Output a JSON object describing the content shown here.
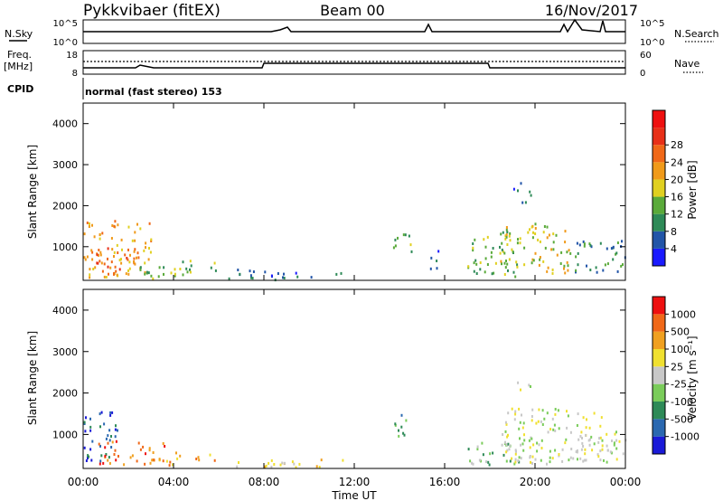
{
  "header": {
    "station": "Pykkvibaer (fitEX)",
    "beam": "Beam 00",
    "date": "16/Nov/2017"
  },
  "status_panel": {
    "nsky_label": "N.Sky",
    "nsearch_label": "N.Search",
    "noise_ticks": [
      "10^5",
      "10^0"
    ],
    "freq_label": "Freq.",
    "freq_unit": "[MHz]",
    "freq_ticks": [
      "18",
      "8"
    ],
    "nave_label": "Nave",
    "nave_ticks": [
      "60",
      "0"
    ],
    "cpid_label": "CPID",
    "cpid_text": "normal (fast stereo) 153"
  },
  "x_axis": {
    "label": "Time UT",
    "ticks": [
      "00:00",
      "04:00",
      "08:00",
      "12:00",
      "16:00",
      "20:00",
      "00:00"
    ]
  },
  "chart_data": [
    {
      "type": "heatmap",
      "panel": "power",
      "ylabel": "Slant Range [km]",
      "xlim_hours": [
        0,
        24
      ],
      "ylim_km": [
        180,
        4500
      ],
      "yticks": [
        1000,
        2000,
        3000,
        4000
      ],
      "colorbar": {
        "label": "Power [dB]",
        "ticks": [
          "4",
          "8",
          "12",
          "16",
          "20",
          "24",
          "28"
        ],
        "colors": [
          "#1a1aff",
          "#2255a8",
          "#2e8a57",
          "#5aaa3a",
          "#e0d020",
          "#f09a1a",
          "#f06818",
          "#e83018",
          "#ee1010"
        ]
      },
      "regions": [
        {
          "t0": 0.0,
          "t1": 3.0,
          "r0": 250,
          "r1": 1700,
          "level": 5
        },
        {
          "t0": 0.3,
          "t1": 2.5,
          "r0": 400,
          "r1": 1000,
          "level": 6
        },
        {
          "t0": 2.5,
          "t1": 5.8,
          "r0": 250,
          "r1": 700,
          "level": 3
        },
        {
          "t0": 5.8,
          "t1": 8.0,
          "r0": 250,
          "r1": 500,
          "level": 2
        },
        {
          "t0": 8.0,
          "t1": 11.5,
          "r0": 220,
          "r1": 420,
          "level": 1
        },
        {
          "t0": 13.7,
          "t1": 14.5,
          "r0": 900,
          "r1": 1500,
          "level": 3
        },
        {
          "t0": 15.3,
          "t1": 15.7,
          "r0": 250,
          "r1": 1000,
          "level": 1
        },
        {
          "t0": 17.0,
          "t1": 19.2,
          "r0": 300,
          "r1": 1400,
          "level": 3
        },
        {
          "t0": 18.4,
          "t1": 21.5,
          "r0": 350,
          "r1": 1600,
          "level": 4
        },
        {
          "t0": 19.0,
          "t1": 19.8,
          "r0": 2100,
          "r1": 2600,
          "level": 1
        },
        {
          "t0": 21.5,
          "t1": 24.0,
          "r0": 400,
          "r1": 1200,
          "level": 2
        }
      ]
    },
    {
      "type": "heatmap",
      "panel": "velocity",
      "ylabel": "Slant Range [km]",
      "xlim_hours": [
        0,
        24
      ],
      "ylim_km": [
        180,
        4500
      ],
      "yticks": [
        1000,
        2000,
        3000,
        4000
      ],
      "colorbar": {
        "label": "Velocity [m s⁻¹]",
        "ticks": [
          "1000",
          "500",
          "100",
          "25",
          "-25",
          "-100",
          "-500",
          "-1000"
        ],
        "colors": [
          "#1a1ad8",
          "#2a68b0",
          "#2e8a57",
          "#7acc5a",
          "#c8c8c8",
          "#f0e030",
          "#f0a020",
          "#f06818",
          "#ee1010"
        ]
      },
      "regions": [
        {
          "t0": 0.0,
          "t1": 1.5,
          "r0": 250,
          "r1": 1600,
          "level": 1
        },
        {
          "t0": 0.6,
          "t1": 3.6,
          "r0": 300,
          "r1": 900,
          "level": 7
        },
        {
          "t0": 3.0,
          "t1": 6.0,
          "r0": 280,
          "r1": 600,
          "level": 6
        },
        {
          "t0": 6.0,
          "t1": 11.5,
          "r0": 220,
          "r1": 420,
          "level": 5
        },
        {
          "t0": 13.7,
          "t1": 14.5,
          "r0": 900,
          "r1": 1500,
          "level": 2
        },
        {
          "t0": 17.0,
          "t1": 20.5,
          "r0": 300,
          "r1": 900,
          "level": 3
        },
        {
          "t0": 18.5,
          "t1": 23.2,
          "r0": 350,
          "r1": 1700,
          "level": 4
        },
        {
          "t0": 19.2,
          "t1": 19.9,
          "r0": 2100,
          "r1": 2400,
          "level": 4
        },
        {
          "t0": 21.5,
          "t1": 24.0,
          "r0": 400,
          "r1": 1100,
          "level": 4
        }
      ]
    }
  ]
}
